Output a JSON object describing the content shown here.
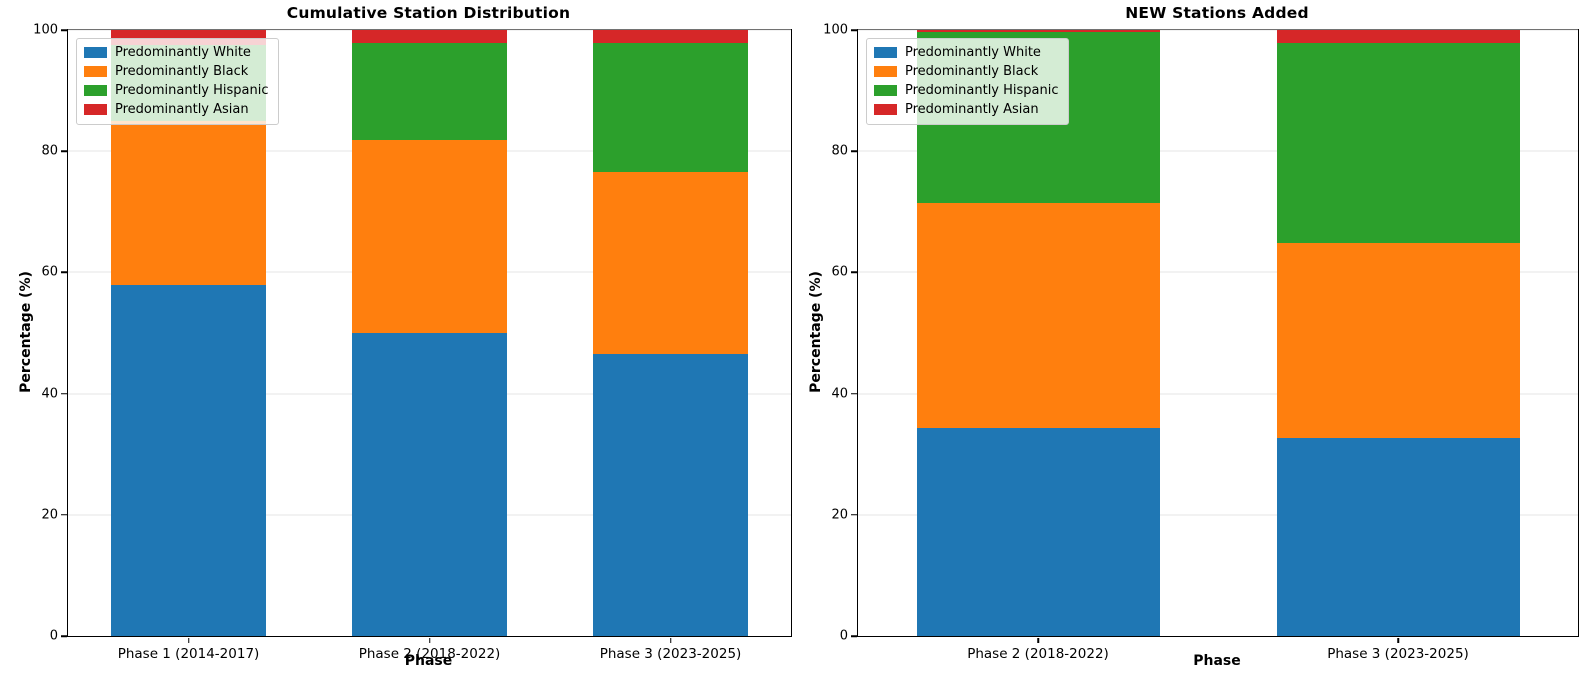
{
  "figure": {
    "background": "#ffffff",
    "text_color": "#000000",
    "gridline_color": "#e4e4e4"
  },
  "legend": {
    "position": "upper-left",
    "items": [
      {
        "label": "Predominantly White",
        "color": "#1f77b4"
      },
      {
        "label": "Predominantly Black",
        "color": "#ff7f0e"
      },
      {
        "label": "Predominantly Hispanic",
        "color": "#2ca02c"
      },
      {
        "label": "Predominantly Asian",
        "color": "#d62728"
      }
    ]
  },
  "chart_data": [
    {
      "type": "bar",
      "stacked": true,
      "title": "Cumulative Station Distribution",
      "xlabel": "Phase",
      "ylabel": "Percentage (%)",
      "ylim": [
        0,
        100
      ],
      "yticks": [
        0,
        20,
        40,
        60,
        80,
        100
      ],
      "grid": "horizontal",
      "legend_position": "upper-left",
      "bar_width_frac": 0.645,
      "categories": [
        "Phase 1 (2014-2017)",
        "Phase 2 (2018-2022)",
        "Phase 3 (2023-2025)"
      ],
      "series": [
        {
          "name": "Predominantly White",
          "color": "#1f77b4",
          "values": [
            58.0,
            50.0,
            46.6
          ]
        },
        {
          "name": "Predominantly Black",
          "color": "#ff7f0e",
          "values": [
            27.0,
            31.8,
            29.9
          ]
        },
        {
          "name": "Predominantly Hispanic",
          "color": "#2ca02c",
          "values": [
            12.6,
            16.1,
            21.3
          ]
        },
        {
          "name": "Predominantly Asian",
          "color": "#d62728",
          "values": [
            2.4,
            2.1,
            2.2
          ]
        }
      ]
    },
    {
      "type": "bar",
      "stacked": true,
      "title": "NEW Stations Added",
      "xlabel": "Phase",
      "ylabel": "Percentage (%)",
      "ylim": [
        0,
        100
      ],
      "yticks": [
        0,
        20,
        40,
        60,
        80,
        100
      ],
      "grid": "horizontal",
      "legend_position": "upper-left",
      "bar_width_frac": 0.675,
      "categories": [
        "Phase 2 (2018-2022)",
        "Phase 3 (2023-2025)"
      ],
      "series": [
        {
          "name": "Predominantly White",
          "color": "#1f77b4",
          "values": [
            34.4,
            32.7
          ]
        },
        {
          "name": "Predominantly Black",
          "color": "#ff7f0e",
          "values": [
            37.0,
            32.1
          ]
        },
        {
          "name": "Predominantly Hispanic",
          "color": "#2ca02c",
          "values": [
            28.3,
            33.0
          ]
        },
        {
          "name": "Predominantly Asian",
          "color": "#d62728",
          "values": [
            0.3,
            2.2
          ]
        }
      ]
    }
  ]
}
